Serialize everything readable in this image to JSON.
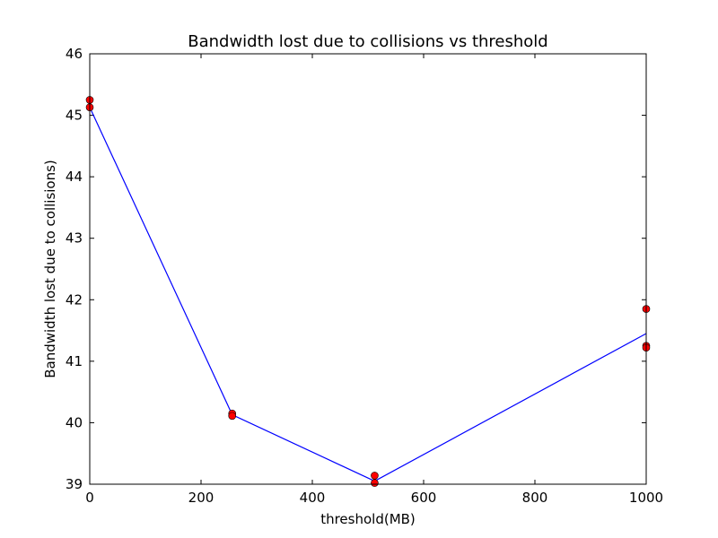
{
  "chart_data": {
    "type": "scatter",
    "title": "Bandwidth lost due to collisions vs threshold",
    "xlabel": "threshold(MB)",
    "ylabel": "Bandwidth lost due to collisions)",
    "xlim": [
      0,
      1000
    ],
    "ylim": [
      39,
      46
    ],
    "xticks": [
      0,
      200,
      400,
      600,
      800,
      1000
    ],
    "yticks": [
      39,
      40,
      41,
      42,
      43,
      44,
      45,
      46
    ],
    "grid": false,
    "series": [
      {
        "kind": "points",
        "color": "#ff0000",
        "x": [
          0,
          0,
          256,
          256,
          512,
          512,
          1000,
          1000,
          1000
        ],
        "y": [
          45.25,
          45.13,
          40.15,
          40.11,
          39.14,
          39.02,
          41.85,
          41.25,
          41.22
        ]
      },
      {
        "kind": "line",
        "color": "#0000ff",
        "x": [
          0,
          256,
          512,
          1000
        ],
        "y": [
          45.13,
          40.13,
          39.05,
          41.45
        ]
      }
    ]
  }
}
